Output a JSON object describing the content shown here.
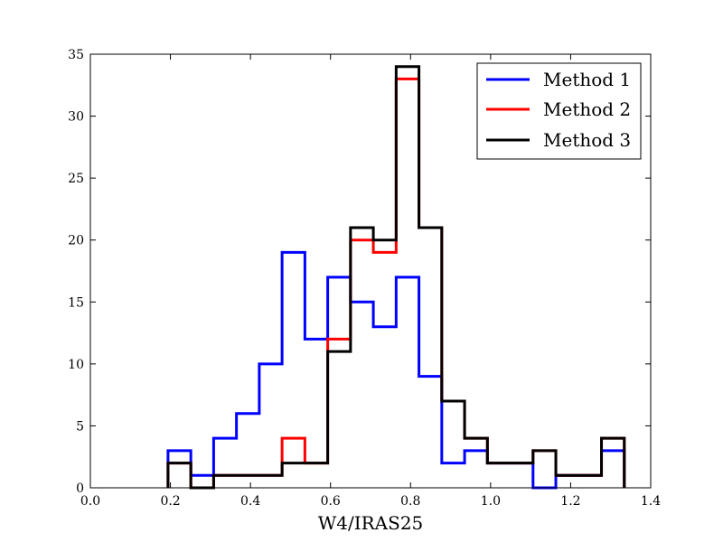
{
  "chart_data": {
    "type": "histogram-step",
    "title": "",
    "xlabel": "W4/IRAS25",
    "ylabel": "",
    "xlim": [
      0.0,
      1.4
    ],
    "ylim": [
      0,
      35
    ],
    "xticks": [
      "0.0",
      "0.2",
      "0.4",
      "0.6",
      "0.8",
      "1.0",
      "1.2",
      "1.4"
    ],
    "yticks": [
      "0",
      "5",
      "10",
      "15",
      "20",
      "25",
      "30",
      "35"
    ],
    "grid": false,
    "legend_position": "top-right",
    "bin_edges": [
      0.194,
      0.251,
      0.308,
      0.365,
      0.422,
      0.479,
      0.536,
      0.593,
      0.65,
      0.707,
      0.764,
      0.821,
      0.878,
      0.935,
      0.992,
      1.049,
      1.106,
      1.163,
      1.22,
      1.277,
      1.334
    ],
    "series": [
      {
        "name": "Method 1",
        "color": "#0000ff",
        "values": [
          3,
          1,
          4,
          6,
          10,
          19,
          12,
          17,
          15,
          13,
          17,
          9,
          2,
          3,
          2,
          2,
          0,
          1,
          1,
          3
        ]
      },
      {
        "name": "Method 2",
        "color": "#ff0000",
        "values": [
          2,
          0,
          1,
          1,
          1,
          4,
          2,
          12,
          20,
          19,
          33,
          21,
          7,
          4,
          2,
          2,
          3,
          1,
          1,
          4
        ]
      },
      {
        "name": "Method 3",
        "color": "#000000",
        "values": [
          2,
          0,
          1,
          1,
          1,
          2,
          2,
          11,
          21,
          20,
          34,
          21,
          7,
          4,
          2,
          2,
          3,
          1,
          1,
          4
        ]
      }
    ]
  }
}
